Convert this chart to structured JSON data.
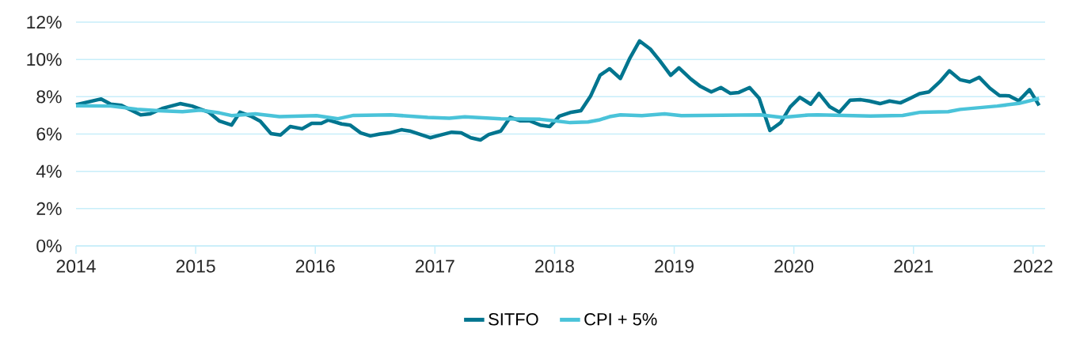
{
  "chart_data": {
    "type": "line",
    "xlim": [
      2014,
      2022.1
    ],
    "ylim": [
      0,
      12
    ],
    "xticks": [
      2014,
      2015,
      2016,
      2017,
      2018,
      2019,
      2020,
      2021,
      2022
    ],
    "yticks": [
      {
        "value": 0,
        "label": "0%"
      },
      {
        "value": 2,
        "label": "2%"
      },
      {
        "value": 4,
        "label": "4%"
      },
      {
        "value": 6,
        "label": "6%"
      },
      {
        "value": 8,
        "label": "8%"
      },
      {
        "value": 10,
        "label": "10%"
      },
      {
        "value": 12,
        "label": "12%"
      }
    ],
    "grid": "y",
    "legend": "bottom",
    "series": [
      {
        "name": "SITFO",
        "color": "#00758f",
        "x": [
          2014.0,
          2014.21,
          2014.29,
          2014.38,
          2014.54,
          2014.62,
          2014.72,
          2014.87,
          2014.97,
          2015.11,
          2015.2,
          2015.3,
          2015.37,
          2015.46,
          2015.54,
          2015.63,
          2015.71,
          2015.79,
          2015.89,
          2015.97,
          2016.05,
          2016.11,
          2016.22,
          2016.29,
          2016.38,
          2016.46,
          2016.54,
          2016.62,
          2016.72,
          2016.79,
          2016.89,
          2016.96,
          2017.05,
          2017.14,
          2017.22,
          2017.3,
          2017.38,
          2017.45,
          2017.55,
          2017.63,
          2017.71,
          2017.79,
          2017.88,
          2017.96,
          2018.04,
          2018.14,
          2018.22,
          2018.3,
          2018.38,
          2018.46,
          2018.55,
          2018.63,
          2018.71,
          2018.8,
          2018.88,
          2018.97,
          2019.04,
          2019.14,
          2019.22,
          2019.31,
          2019.39,
          2019.47,
          2019.54,
          2019.63,
          2019.71,
          2019.8,
          2019.89,
          2019.97,
          2020.05,
          2020.14,
          2020.21,
          2020.3,
          2020.38,
          2020.47,
          2020.56,
          2020.63,
          2020.72,
          2020.8,
          2020.89,
          2020.97,
          2021.05,
          2021.13,
          2021.22,
          2021.3,
          2021.39,
          2021.47,
          2021.55,
          2021.64,
          2021.72,
          2021.8,
          2021.88,
          2021.97,
          2022.05
        ],
        "values": [
          7.57,
          7.88,
          7.6,
          7.54,
          7.03,
          7.08,
          7.37,
          7.63,
          7.5,
          7.17,
          6.69,
          6.48,
          7.17,
          6.96,
          6.69,
          6.02,
          5.95,
          6.4,
          6.28,
          6.57,
          6.57,
          6.75,
          6.54,
          6.48,
          6.06,
          5.9,
          6.0,
          6.06,
          6.23,
          6.16,
          5.95,
          5.8,
          5.95,
          6.1,
          6.06,
          5.8,
          5.68,
          5.97,
          6.16,
          6.9,
          6.71,
          6.71,
          6.48,
          6.4,
          6.96,
          7.17,
          7.25,
          8.02,
          9.15,
          9.5,
          8.98,
          10.08,
          10.99,
          10.56,
          9.93,
          9.15,
          9.55,
          8.94,
          8.55,
          8.26,
          8.49,
          8.18,
          8.23,
          8.49,
          7.92,
          6.19,
          6.61,
          7.46,
          7.97,
          7.6,
          8.18,
          7.46,
          7.17,
          7.81,
          7.84,
          7.77,
          7.63,
          7.77,
          7.67,
          7.91,
          8.16,
          8.26,
          8.8,
          9.39,
          8.91,
          8.8,
          9.04,
          8.45,
          8.06,
          8.05,
          7.78,
          8.38,
          7.53
        ]
      },
      {
        "name": "CPI + 5%",
        "color": "#4ac3d9",
        "x": [
          2014.0,
          2014.29,
          2014.51,
          2014.69,
          2014.89,
          2015.04,
          2015.2,
          2015.3,
          2015.5,
          2015.7,
          2016.01,
          2016.19,
          2016.32,
          2016.63,
          2016.94,
          2017.12,
          2017.25,
          2017.55,
          2017.88,
          2018.0,
          2018.13,
          2018.28,
          2018.37,
          2018.46,
          2018.55,
          2018.73,
          2018.92,
          2019.06,
          2019.23,
          2019.72,
          2019.9,
          2020.12,
          2020.2,
          2020.64,
          2020.91,
          2021.06,
          2021.29,
          2021.39,
          2021.7,
          2021.88,
          2022.05
        ],
        "values": [
          7.52,
          7.5,
          7.33,
          7.25,
          7.2,
          7.28,
          7.13,
          6.99,
          7.08,
          6.93,
          6.99,
          6.82,
          7.0,
          7.03,
          6.89,
          6.85,
          6.92,
          6.82,
          6.79,
          6.71,
          6.61,
          6.65,
          6.75,
          6.93,
          7.03,
          6.99,
          7.08,
          6.99,
          7.0,
          7.03,
          6.89,
          7.02,
          7.03,
          6.96,
          7.0,
          7.17,
          7.2,
          7.32,
          7.5,
          7.64,
          7.91
        ]
      }
    ]
  }
}
